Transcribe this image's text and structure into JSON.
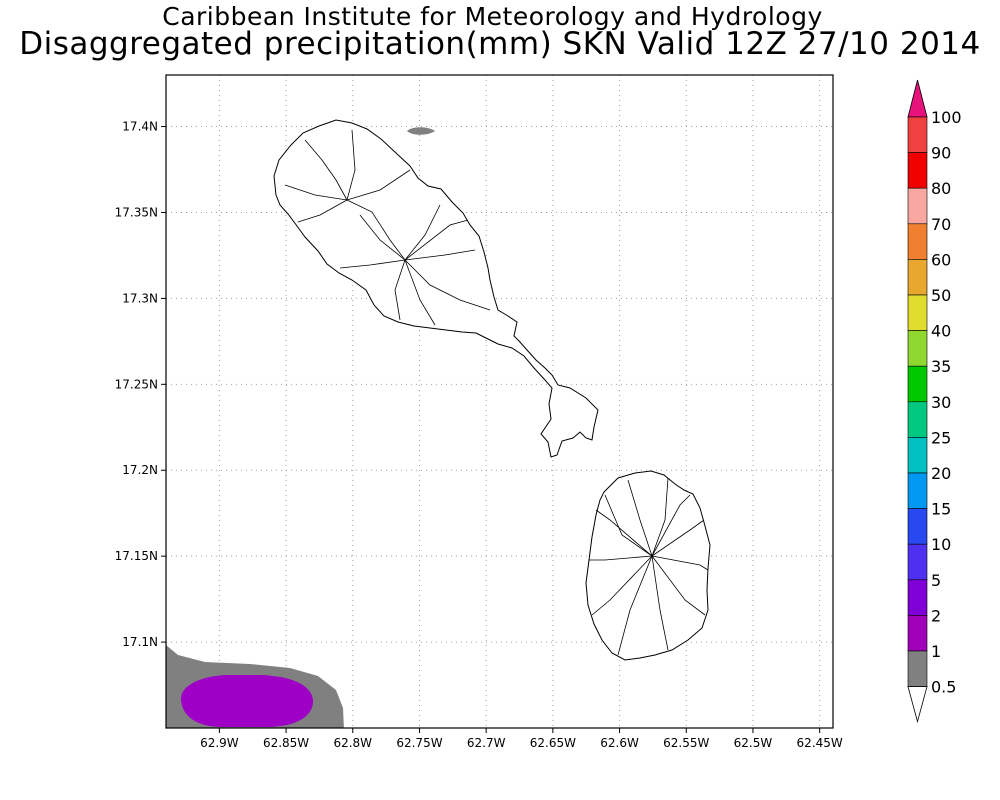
{
  "title": {
    "line1": "Caribbean Institute for Meteorology and Hydrology",
    "line2": "Disaggregated precipitation(mm) SKN Valid 12Z 27/10 2014"
  },
  "map": {
    "lon_range": [
      -62.94,
      -62.44
    ],
    "lat_range": [
      17.05,
      17.43
    ],
    "x_ticks": [
      {
        "value": -62.9,
        "label": "62.9W"
      },
      {
        "value": -62.85,
        "label": "62.85W"
      },
      {
        "value": -62.8,
        "label": "62.8W"
      },
      {
        "value": -62.75,
        "label": "62.75W"
      },
      {
        "value": -62.7,
        "label": "62.7W"
      },
      {
        "value": -62.65,
        "label": "62.65W"
      },
      {
        "value": -62.6,
        "label": "62.6W"
      },
      {
        "value": -62.55,
        "label": "62.55W"
      },
      {
        "value": -62.5,
        "label": "62.5W"
      },
      {
        "value": -62.45,
        "label": "62.45W"
      }
    ],
    "y_ticks": [
      {
        "value": 17.4,
        "label": "17.4N"
      },
      {
        "value": 17.35,
        "label": "17.35N"
      },
      {
        "value": 17.3,
        "label": "17.3N"
      },
      {
        "value": 17.25,
        "label": "17.25N"
      },
      {
        "value": 17.2,
        "label": "17.2N"
      },
      {
        "value": 17.15,
        "label": "17.15N"
      },
      {
        "value": 17.1,
        "label": "17.1N"
      }
    ],
    "grid": "dotted",
    "features": [
      "island-st-kitts",
      "island-nevis",
      "precip-area-gray-0.5-1mm",
      "precip-area-purple-1-2mm"
    ]
  },
  "colorbar": {
    "levels": [
      {
        "label": "100",
        "color": "#e8126e"
      },
      {
        "label": "90",
        "color": "#f04040"
      },
      {
        "label": "80",
        "color": "#f00000"
      },
      {
        "label": "70",
        "color": "#f8a8a0"
      },
      {
        "label": "60",
        "color": "#f08030"
      },
      {
        "label": "50",
        "color": "#e8a830"
      },
      {
        "label": "40",
        "color": "#e0dc30"
      },
      {
        "label": "35",
        "color": "#90d830"
      },
      {
        "label": "30",
        "color": "#00c800"
      },
      {
        "label": "25",
        "color": "#00c880"
      },
      {
        "label": "20",
        "color": "#00c0c0"
      },
      {
        "label": "15",
        "color": "#0098f0"
      },
      {
        "label": "10",
        "color": "#2848f0"
      },
      {
        "label": "5",
        "color": "#5030f0"
      },
      {
        "label": "2",
        "color": "#8000d8"
      },
      {
        "label": "1",
        "color": "#a000b8"
      },
      {
        "label": "0.5",
        "color": "#808080"
      }
    ],
    "top_arrow_color": "#e8127c",
    "bottom_arrow_color": "#ffffff"
  }
}
